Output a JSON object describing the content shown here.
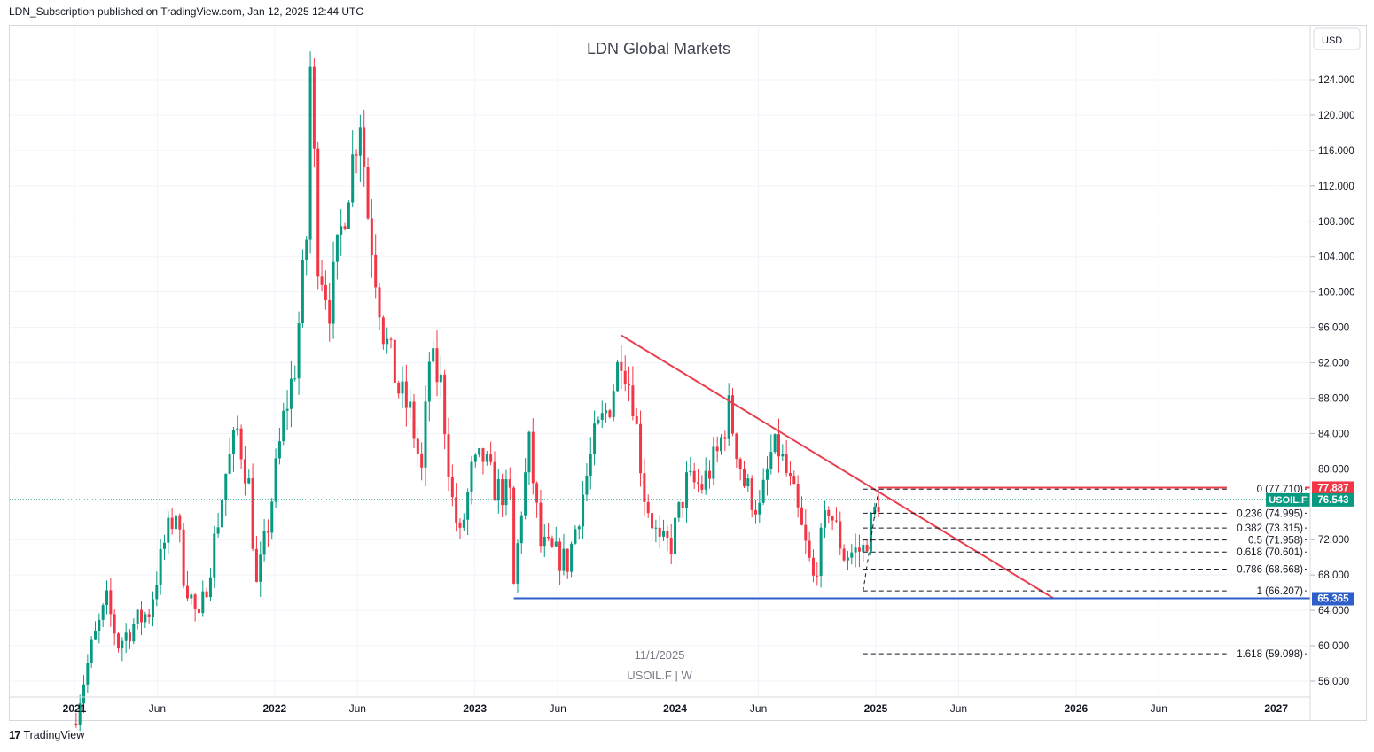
{
  "header": {
    "publisher_line": "LDN_Subscription published on TradingView.com, Jan 12, 2025 12:44 UTC"
  },
  "footer": {
    "brand": "TradingView",
    "logo_glyph": "17"
  },
  "currency_button": "USD",
  "colors": {
    "bull": "#089981",
    "bear": "#f23645",
    "trendline": "#e8404e",
    "support": "#2d5ec9",
    "resistance": "#e8404e",
    "label_red": "#f23645",
    "label_green": "#089981",
    "label_blue": "#2d5ec9"
  },
  "chart_data": {
    "type": "candlestick",
    "title": "LDN Global Markets",
    "symbol_label": "USOIL.F  |  W",
    "date_label": "11/1/2025",
    "interval": "W",
    "yticks": [
      "124.000",
      "120.000",
      "116.000",
      "112.000",
      "108.000",
      "104.000",
      "100.000",
      "96.000",
      "92.000",
      "88.000",
      "84.000",
      "80.000",
      "72.000",
      "68.000",
      "64.000",
      "60.000",
      "56.000"
    ],
    "xticks": [
      {
        "label": "2021",
        "date": "2021-01-01",
        "bold": true
      },
      {
        "label": "Jun",
        "date": "2021-06-01",
        "bold": false
      },
      {
        "label": "2022",
        "date": "2022-01-01",
        "bold": true
      },
      {
        "label": "Jun",
        "date": "2022-06-01",
        "bold": false
      },
      {
        "label": "2023",
        "date": "2023-01-01",
        "bold": true
      },
      {
        "label": "Jun",
        "date": "2023-06-01",
        "bold": false
      },
      {
        "label": "2024",
        "date": "2024-01-01",
        "bold": true
      },
      {
        "label": "Jun",
        "date": "2024-06-01",
        "bold": false
      },
      {
        "label": "2025",
        "date": "2025-01-01",
        "bold": true
      },
      {
        "label": "Jun",
        "date": "2025-06-01",
        "bold": false
      },
      {
        "label": "2026",
        "date": "2026-01-01",
        "bold": true
      },
      {
        "label": "Jun",
        "date": "2026-06-01",
        "bold": false
      },
      {
        "label": "2027",
        "date": "2027-01-01",
        "bold": true
      }
    ],
    "price_labels": [
      {
        "name": "resistance-price-label",
        "text": "77.887",
        "value": 77.887,
        "color": "label_red"
      },
      {
        "name": "last-price-label",
        "text": "76.543",
        "value": 76.543,
        "color": "label_green",
        "symbol": "USOIL.F"
      },
      {
        "name": "support-price-label",
        "text": "65.365",
        "value": 65.365,
        "color": "label_blue"
      }
    ],
    "last_price": 76.543,
    "fib_levels": [
      {
        "label": "0 (77.710)",
        "value": 77.71
      },
      {
        "label": "0.236 (74.995)",
        "value": 74.995
      },
      {
        "label": "0.382 (73.315)",
        "value": 73.315
      },
      {
        "label": "0.5 (71.958)",
        "value": 71.958
      },
      {
        "label": "0.618 (70.601)",
        "value": 70.601
      },
      {
        "label": "0.786 (68.668)",
        "value": 68.668
      },
      {
        "label": "1 (66.207)",
        "value": 66.207
      },
      {
        "label": "1.618 (59.098)",
        "value": 59.098
      }
    ],
    "fib_start_date": "2024-12-09",
    "fib_end_date": "2027-01-01",
    "trendline": {
      "start": {
        "date": "2023-09-25",
        "value": 95.1
      },
      "end": {
        "date": "2025-11-20",
        "value": 65.4
      }
    },
    "support_line": {
      "value": 65.365,
      "start_date": "2023-03-13",
      "end_date": "2027-03-15"
    },
    "resistance_line": {
      "value": 77.887,
      "start_date": "2025-01-06",
      "end_date": "2027-03-15"
    },
    "closes": [
      {
        "date": "2021-01-04",
        "close": 52.4
      },
      {
        "date": "2021-02-01",
        "close": 59.8
      },
      {
        "date": "2021-03-01",
        "close": 64.9
      },
      {
        "date": "2021-03-22",
        "close": 60.2
      },
      {
        "date": "2021-04-19",
        "close": 62.4
      },
      {
        "date": "2021-05-17",
        "close": 63.9
      },
      {
        "date": "2021-06-14",
        "close": 71.6
      },
      {
        "date": "2021-07-05",
        "close": 75.4
      },
      {
        "date": "2021-07-19",
        "close": 68.2
      },
      {
        "date": "2021-08-16",
        "close": 62.5
      },
      {
        "date": "2021-09-13",
        "close": 71.8
      },
      {
        "date": "2021-10-04",
        "close": 79.5
      },
      {
        "date": "2021-10-25",
        "close": 84.3
      },
      {
        "date": "2021-11-15",
        "close": 78.1
      },
      {
        "date": "2021-11-29",
        "close": 66.6
      },
      {
        "date": "2021-12-20",
        "close": 73.7
      },
      {
        "date": "2022-01-17",
        "close": 85.6
      },
      {
        "date": "2022-02-07",
        "close": 91.6
      },
      {
        "date": "2022-02-28",
        "close": 106.2
      },
      {
        "date": "2022-03-07",
        "close": 125.3
      },
      {
        "date": "2022-03-21",
        "close": 104.2
      },
      {
        "date": "2022-04-11",
        "close": 98.5
      },
      {
        "date": "2022-05-09",
        "close": 109.7
      },
      {
        "date": "2022-06-06",
        "close": 120.2
      },
      {
        "date": "2022-06-20",
        "close": 108.9
      },
      {
        "date": "2022-07-18",
        "close": 95.7
      },
      {
        "date": "2022-08-15",
        "close": 88.9
      },
      {
        "date": "2022-09-05",
        "close": 86.3
      },
      {
        "date": "2022-09-26",
        "close": 79.5
      },
      {
        "date": "2022-10-10",
        "close": 92.4
      },
      {
        "date": "2022-10-31",
        "close": 89.6
      },
      {
        "date": "2022-11-21",
        "close": 76.3
      },
      {
        "date": "2022-12-05",
        "close": 72.0
      },
      {
        "date": "2022-12-26",
        "close": 79.5
      },
      {
        "date": "2023-01-16",
        "close": 81.2
      },
      {
        "date": "2023-02-06",
        "close": 77.9
      },
      {
        "date": "2023-03-06",
        "close": 76.8
      },
      {
        "date": "2023-03-13",
        "close": 66.7
      },
      {
        "date": "2023-03-27",
        "close": 75.7
      },
      {
        "date": "2023-04-10",
        "close": 82.5
      },
      {
        "date": "2023-05-01",
        "close": 71.3
      },
      {
        "date": "2023-05-29",
        "close": 70.2
      },
      {
        "date": "2023-06-19",
        "close": 69.4
      },
      {
        "date": "2023-07-10",
        "close": 75.2
      },
      {
        "date": "2023-08-07",
        "close": 83.2
      },
      {
        "date": "2023-09-04",
        "close": 87.5
      },
      {
        "date": "2023-09-25",
        "close": 93.4
      },
      {
        "date": "2023-10-16",
        "close": 88.1
      },
      {
        "date": "2023-11-06",
        "close": 77.2
      },
      {
        "date": "2023-12-04",
        "close": 71.2
      },
      {
        "date": "2023-12-25",
        "close": 71.6
      },
      {
        "date": "2024-01-22",
        "close": 78.4
      },
      {
        "date": "2024-02-19",
        "close": 78.1
      },
      {
        "date": "2024-03-18",
        "close": 81.6
      },
      {
        "date": "2024-04-08",
        "close": 86.7
      },
      {
        "date": "2024-05-06",
        "close": 78.4
      },
      {
        "date": "2024-06-03",
        "close": 75.2
      },
      {
        "date": "2024-06-24",
        "close": 81.6
      },
      {
        "date": "2024-07-08",
        "close": 82.2
      },
      {
        "date": "2024-08-05",
        "close": 76.6
      },
      {
        "date": "2024-09-09",
        "close": 67.5
      },
      {
        "date": "2024-10-07",
        "close": 75.8
      },
      {
        "date": "2024-11-04",
        "close": 70.3
      },
      {
        "date": "2024-12-09",
        "close": 70.9
      },
      {
        "date": "2025-01-06",
        "close": 76.5
      }
    ]
  }
}
